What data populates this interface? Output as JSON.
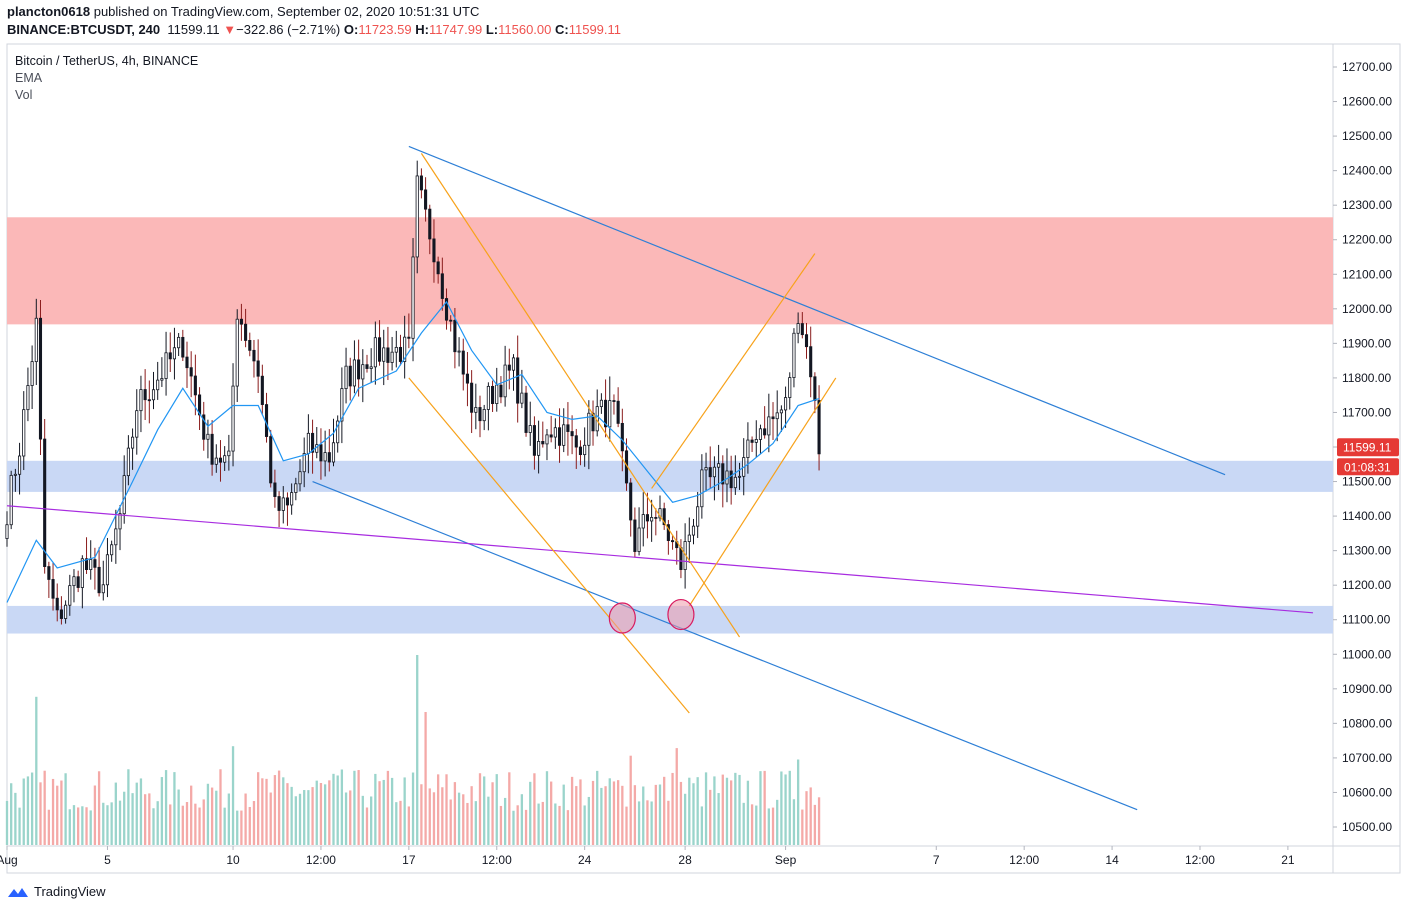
{
  "header": {
    "publisher": "plancton0618",
    "published_text": "published on TradingView.com, September 02, 2020 10:51:31 UTC",
    "symbol": "BINANCE:BTCUSDT, 240",
    "last": "11599.11",
    "change_arrow": "▼",
    "change": "−322.86 (−2.71%)",
    "o_label": "O:",
    "o_val": "11723.59",
    "h_label": "H:",
    "h_val": "11747.99",
    "l_label": "L:",
    "l_val": "11560.00",
    "c_label": "C:",
    "c_val": "11599.11"
  },
  "legend": {
    "title": "Bitcoin / TetherUS, 4h, BINANCE",
    "ema": "EMA",
    "vol": "Vol"
  },
  "footer": {
    "brand": "TradingView"
  },
  "colors": {
    "up": "#26a69a",
    "down": "#ef5350",
    "candle": "#131722",
    "ema": "#2196f3",
    "resistance_zone": "#fbb8b8",
    "support_zone": "#c9d8f5",
    "orange_lines": "#f7a21b",
    "blue_lines": "#2d7fd6",
    "purple_line": "#a82ce0",
    "vol_up": "#9ad4cb",
    "vol_down": "#f4a9a7",
    "price_badge": "#e53935"
  },
  "chart_data": {
    "type": "candlestick",
    "symbol": "BTCUSDT",
    "interval": "4h",
    "y_axis": {
      "min": 10450,
      "max": 12760,
      "ticks": [
        "12700.00",
        "12600.00",
        "12500.00",
        "12400.00",
        "12300.00",
        "12200.00",
        "12100.00",
        "12000.00",
        "11900.00",
        "11800.00",
        "11700.00",
        "11600.00",
        "11500.00",
        "11400.00",
        "11300.00",
        "11200.00",
        "11100.00",
        "11000.00",
        "10900.00",
        "10800.00",
        "10700.00",
        "10600.00",
        "10500.00"
      ]
    },
    "x_axis": {
      "start": "2020-08-01T00:00",
      "end": "2020-09-22T00:00",
      "ticks": [
        {
          "label": "Aug",
          "t": "2020-08-01T00:00"
        },
        {
          "label": "5",
          "t": "2020-08-05T00:00"
        },
        {
          "label": "10",
          "t": "2020-08-10T00:00"
        },
        {
          "label": "12:00",
          "t": "2020-08-13T12:00"
        },
        {
          "label": "17",
          "t": "2020-08-17T00:00"
        },
        {
          "label": "12:00",
          "t": "2020-08-20T12:00"
        },
        {
          "label": "24",
          "t": "2020-08-24T00:00"
        },
        {
          "label": "28",
          "t": "2020-08-28T00:00"
        },
        {
          "label": "Sep",
          "t": "2020-09-01T00:00"
        },
        {
          "label": "7",
          "t": "2020-09-07T00:00"
        },
        {
          "label": "12:00",
          "t": "2020-09-10T12:00"
        },
        {
          "label": "14",
          "t": "2020-09-14T00:00"
        },
        {
          "label": "12:00",
          "t": "2020-09-17T12:00"
        },
        {
          "label": "21",
          "t": "2020-09-21T00:00"
        }
      ]
    },
    "price_marker": {
      "price": 11599.11,
      "label": "11599.11",
      "countdown": "01:08:31"
    },
    "zones": [
      {
        "name": "resistance",
        "from": 11955,
        "to": 12265
      },
      {
        "name": "support-upper",
        "from": 11470,
        "to": 11560
      },
      {
        "name": "support-lower",
        "from": 11060,
        "to": 11140
      }
    ],
    "trendlines": [
      {
        "name": "blue-upper",
        "color": "blue",
        "t1": "2020-08-17T00:00",
        "p1": 12470,
        "t2": "2020-09-18T12:00",
        "p2": 11520
      },
      {
        "name": "blue-lower",
        "color": "blue",
        "t1": "2020-08-13T04:00",
        "p1": 11500,
        "t2": "2020-09-15T00:00",
        "p2": 10550
      },
      {
        "name": "purple",
        "color": "purple",
        "t1": "2020-08-01T00:00",
        "p1": 11430,
        "t2": "2020-09-22T00:00",
        "p2": 11120
      },
      {
        "name": "orange-1",
        "color": "orange",
        "t1": "2020-08-17T12:00",
        "p1": 12450,
        "t2": "2020-08-30T04:00",
        "p2": 11050
      },
      {
        "name": "orange-2",
        "color": "orange",
        "t1": "2020-08-17T00:00",
        "p1": 11800,
        "t2": "2020-08-28T04:00",
        "p2": 10830
      },
      {
        "name": "orange-3",
        "color": "orange",
        "t1": "2020-08-28T04:00",
        "p1": 11140,
        "t2": "2020-09-03T00:00",
        "p2": 11800
      },
      {
        "name": "orange-4",
        "color": "orange",
        "t1": "2020-08-26T16:00",
        "p1": 11480,
        "t2": "2020-09-02T04:00",
        "p2": 12160
      }
    ],
    "circles": [
      {
        "t": "2020-08-25T12:00",
        "p": 11105
      },
      {
        "t": "2020-08-27T20:00",
        "p": 11115
      }
    ],
    "anchors": [
      {
        "t": "2020-08-01T00:00",
        "p": 11420
      },
      {
        "t": "2020-08-01T12:00",
        "p": 11600
      },
      {
        "t": "2020-08-02T04:00",
        "p": 11950
      },
      {
        "t": "2020-08-02T12:00",
        "p": 11250
      },
      {
        "t": "2020-08-03T00:00",
        "p": 11100
      },
      {
        "t": "2020-08-04T00:00",
        "p": 11260
      },
      {
        "t": "2020-08-04T20:00",
        "p": 11200
      },
      {
        "t": "2020-08-05T12:00",
        "p": 11400
      },
      {
        "t": "2020-08-06T04:00",
        "p": 11720
      },
      {
        "t": "2020-08-07T00:00",
        "p": 11800
      },
      {
        "t": "2020-08-08T00:00",
        "p": 11900
      },
      {
        "t": "2020-08-09T00:00",
        "p": 11600
      },
      {
        "t": "2020-08-09T20:00",
        "p": 11550
      },
      {
        "t": "2020-08-10T04:00",
        "p": 12000
      },
      {
        "t": "2020-08-11T00:00",
        "p": 11820
      },
      {
        "t": "2020-08-11T16:00",
        "p": 11420
      },
      {
        "t": "2020-08-12T04:00",
        "p": 11420
      },
      {
        "t": "2020-08-13T00:00",
        "p": 11600
      },
      {
        "t": "2020-08-13T20:00",
        "p": 11570
      },
      {
        "t": "2020-08-14T12:00",
        "p": 11800
      },
      {
        "t": "2020-08-15T12:00",
        "p": 11870
      },
      {
        "t": "2020-08-16T12:00",
        "p": 11880
      },
      {
        "t": "2020-08-17T00:00",
        "p": 11880
      },
      {
        "t": "2020-08-17T08:00",
        "p": 12350
      },
      {
        "t": "2020-08-18T00:00",
        "p": 12180
      },
      {
        "t": "2020-08-18T20:00",
        "p": 11900
      },
      {
        "t": "2020-08-19T16:00",
        "p": 11680
      },
      {
        "t": "2020-08-20T12:00",
        "p": 11780
      },
      {
        "t": "2020-08-21T04:00",
        "p": 11820
      },
      {
        "t": "2020-08-22T00:00",
        "p": 11570
      },
      {
        "t": "2020-08-22T12:00",
        "p": 11660
      },
      {
        "t": "2020-08-23T04:00",
        "p": 11640
      },
      {
        "t": "2020-08-23T16:00",
        "p": 11600
      },
      {
        "t": "2020-08-24T12:00",
        "p": 11700
      },
      {
        "t": "2020-08-25T04:00",
        "p": 11700
      },
      {
        "t": "2020-08-26T00:00",
        "p": 11320
      },
      {
        "t": "2020-08-26T16:00",
        "p": 11420
      },
      {
        "t": "2020-08-27T04:00",
        "p": 11370
      },
      {
        "t": "2020-08-27T20:00",
        "p": 11260
      },
      {
        "t": "2020-08-28T16:00",
        "p": 11490
      },
      {
        "t": "2020-08-29T12:00",
        "p": 11520
      },
      {
        "t": "2020-08-30T04:00",
        "p": 11510
      },
      {
        "t": "2020-08-30T20:00",
        "p": 11650
      },
      {
        "t": "2020-08-31T12:00",
        "p": 11680
      },
      {
        "t": "2020-09-01T00:00",
        "p": 11720
      },
      {
        "t": "2020-09-01T12:00",
        "p": 12000
      },
      {
        "t": "2020-09-02T00:00",
        "p": 11830
      },
      {
        "t": "2020-09-02T08:00",
        "p": 11599
      }
    ],
    "ema": [
      {
        "t": "2020-08-01T00:00",
        "p": 11150
      },
      {
        "t": "2020-08-02T04:00",
        "p": 11330
      },
      {
        "t": "2020-08-03T00:00",
        "p": 11250
      },
      {
        "t": "2020-08-04T12:00",
        "p": 11280
      },
      {
        "t": "2020-08-06T00:00",
        "p": 11500
      },
      {
        "t": "2020-08-07T00:00",
        "p": 11650
      },
      {
        "t": "2020-08-08T00:00",
        "p": 11770
      },
      {
        "t": "2020-08-09T00:00",
        "p": 11660
      },
      {
        "t": "2020-08-10T00:00",
        "p": 11720
      },
      {
        "t": "2020-08-11T00:00",
        "p": 11720
      },
      {
        "t": "2020-08-12T00:00",
        "p": 11560
      },
      {
        "t": "2020-08-13T00:00",
        "p": 11580
      },
      {
        "t": "2020-08-14T00:00",
        "p": 11640
      },
      {
        "t": "2020-08-15T00:00",
        "p": 11770
      },
      {
        "t": "2020-08-16T12:00",
        "p": 11820
      },
      {
        "t": "2020-08-17T12:00",
        "p": 11930
      },
      {
        "t": "2020-08-18T12:00",
        "p": 12020
      },
      {
        "t": "2020-08-19T12:00",
        "p": 11880
      },
      {
        "t": "2020-08-20T12:00",
        "p": 11780
      },
      {
        "t": "2020-08-21T12:00",
        "p": 11810
      },
      {
        "t": "2020-08-22T12:00",
        "p": 11700
      },
      {
        "t": "2020-08-23T12:00",
        "p": 11680
      },
      {
        "t": "2020-08-24T12:00",
        "p": 11690
      },
      {
        "t": "2020-08-25T12:00",
        "p": 11620
      },
      {
        "t": "2020-08-26T12:00",
        "p": 11530
      },
      {
        "t": "2020-08-27T12:00",
        "p": 11440
      },
      {
        "t": "2020-08-28T12:00",
        "p": 11460
      },
      {
        "t": "2020-08-29T12:00",
        "p": 11500
      },
      {
        "t": "2020-08-30T12:00",
        "p": 11550
      },
      {
        "t": "2020-08-31T12:00",
        "p": 11610
      },
      {
        "t": "2020-09-01T12:00",
        "p": 11720
      },
      {
        "t": "2020-09-02T08:00",
        "p": 11740
      }
    ],
    "volume": {
      "scale_note": "relative units; tallest bar = 100",
      "peaks": [
        {
          "t": "2020-08-02T04:00",
          "v": 78
        },
        {
          "t": "2020-08-10T00:00",
          "v": 52
        },
        {
          "t": "2020-08-17T08:00",
          "v": 100
        },
        {
          "t": "2020-08-17T16:00",
          "v": 70
        },
        {
          "t": "2020-08-25T20:00",
          "v": 47
        },
        {
          "t": "2020-08-27T16:00",
          "v": 51
        },
        {
          "t": "2020-09-01T12:00",
          "v": 45
        }
      ]
    }
  }
}
